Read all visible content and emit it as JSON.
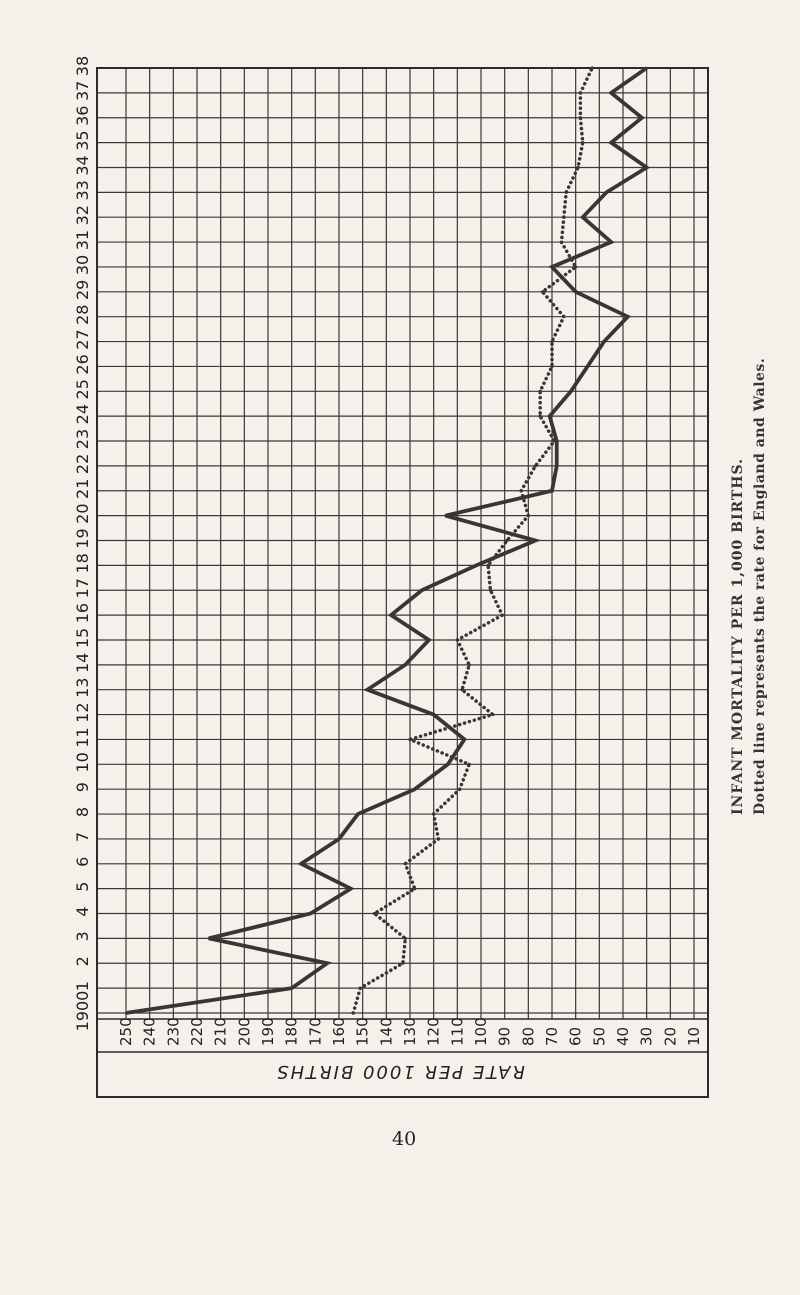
{
  "page_number": "40",
  "caption": {
    "title": "INFANT MORTALITY PER 1,000 BIRTHS.",
    "note": "Dotted line represents the rate for England and Wales."
  },
  "chart_data": {
    "type": "line",
    "ylabel": "RATE PER 1000 BIRTHS",
    "yticks": [
      250,
      240,
      230,
      220,
      210,
      200,
      190,
      180,
      170,
      160,
      150,
      140,
      130,
      120,
      110,
      100,
      90,
      80,
      70,
      60,
      50,
      40,
      30,
      20,
      10
    ],
    "xticks": [
      "1900",
      "1",
      "2",
      "3",
      "4",
      "5",
      "6",
      "7",
      "8",
      "9",
      "10",
      "11",
      "12",
      "13",
      "14",
      "15",
      "16",
      "17",
      "18",
      "19",
      "20",
      "21",
      "22",
      "23",
      "24",
      "25",
      "26",
      "27",
      "28",
      "29",
      "30",
      "31",
      "32",
      "33",
      "34",
      "35",
      "36",
      "37",
      "38"
    ],
    "ylim": [
      0,
      260
    ],
    "xlim": [
      1900,
      1938
    ],
    "grid": true,
    "series": [
      {
        "style": "solid",
        "color": "#3a3535",
        "x": [
          1900,
          1901,
          1902,
          1903,
          1904,
          1905,
          1906,
          1907,
          1908,
          1909,
          1910,
          1911,
          1912,
          1913,
          1914,
          1915,
          1916,
          1917,
          1918,
          1919,
          1920,
          1921,
          1922,
          1923,
          1924,
          1925,
          1926,
          1927,
          1928,
          1929,
          1930,
          1931,
          1932,
          1933,
          1934,
          1935,
          1936,
          1937,
          1938
        ],
        "y": [
          250,
          180,
          165,
          215,
          172,
          155,
          176,
          160,
          152,
          128,
          114,
          107,
          120,
          148,
          132,
          122,
          138,
          125,
          102,
          77,
          115,
          70,
          68,
          68,
          71,
          62,
          55,
          48,
          38,
          60,
          70,
          45,
          57,
          47,
          30,
          45,
          32,
          45,
          30
        ]
      },
      {
        "style": "dotted",
        "color": "#3a3535",
        "x": [
          1900,
          1901,
          1902,
          1903,
          1904,
          1905,
          1906,
          1907,
          1908,
          1909,
          1910,
          1911,
          1912,
          1913,
          1914,
          1915,
          1916,
          1917,
          1918,
          1919,
          1920,
          1921,
          1922,
          1923,
          1924,
          1925,
          1926,
          1927,
          1928,
          1929,
          1930,
          1931,
          1932,
          1933,
          1934,
          1935,
          1936,
          1937,
          1938
        ],
        "y": [
          154,
          151,
          133,
          132,
          145,
          128,
          132,
          118,
          120,
          109,
          105,
          130,
          95,
          108,
          105,
          110,
          91,
          96,
          97,
          89,
          80,
          83,
          77,
          69,
          75,
          75,
          70,
          70,
          65,
          74,
          60,
          66,
          65,
          64,
          59,
          57,
          58,
          58,
          53
        ]
      }
    ]
  }
}
